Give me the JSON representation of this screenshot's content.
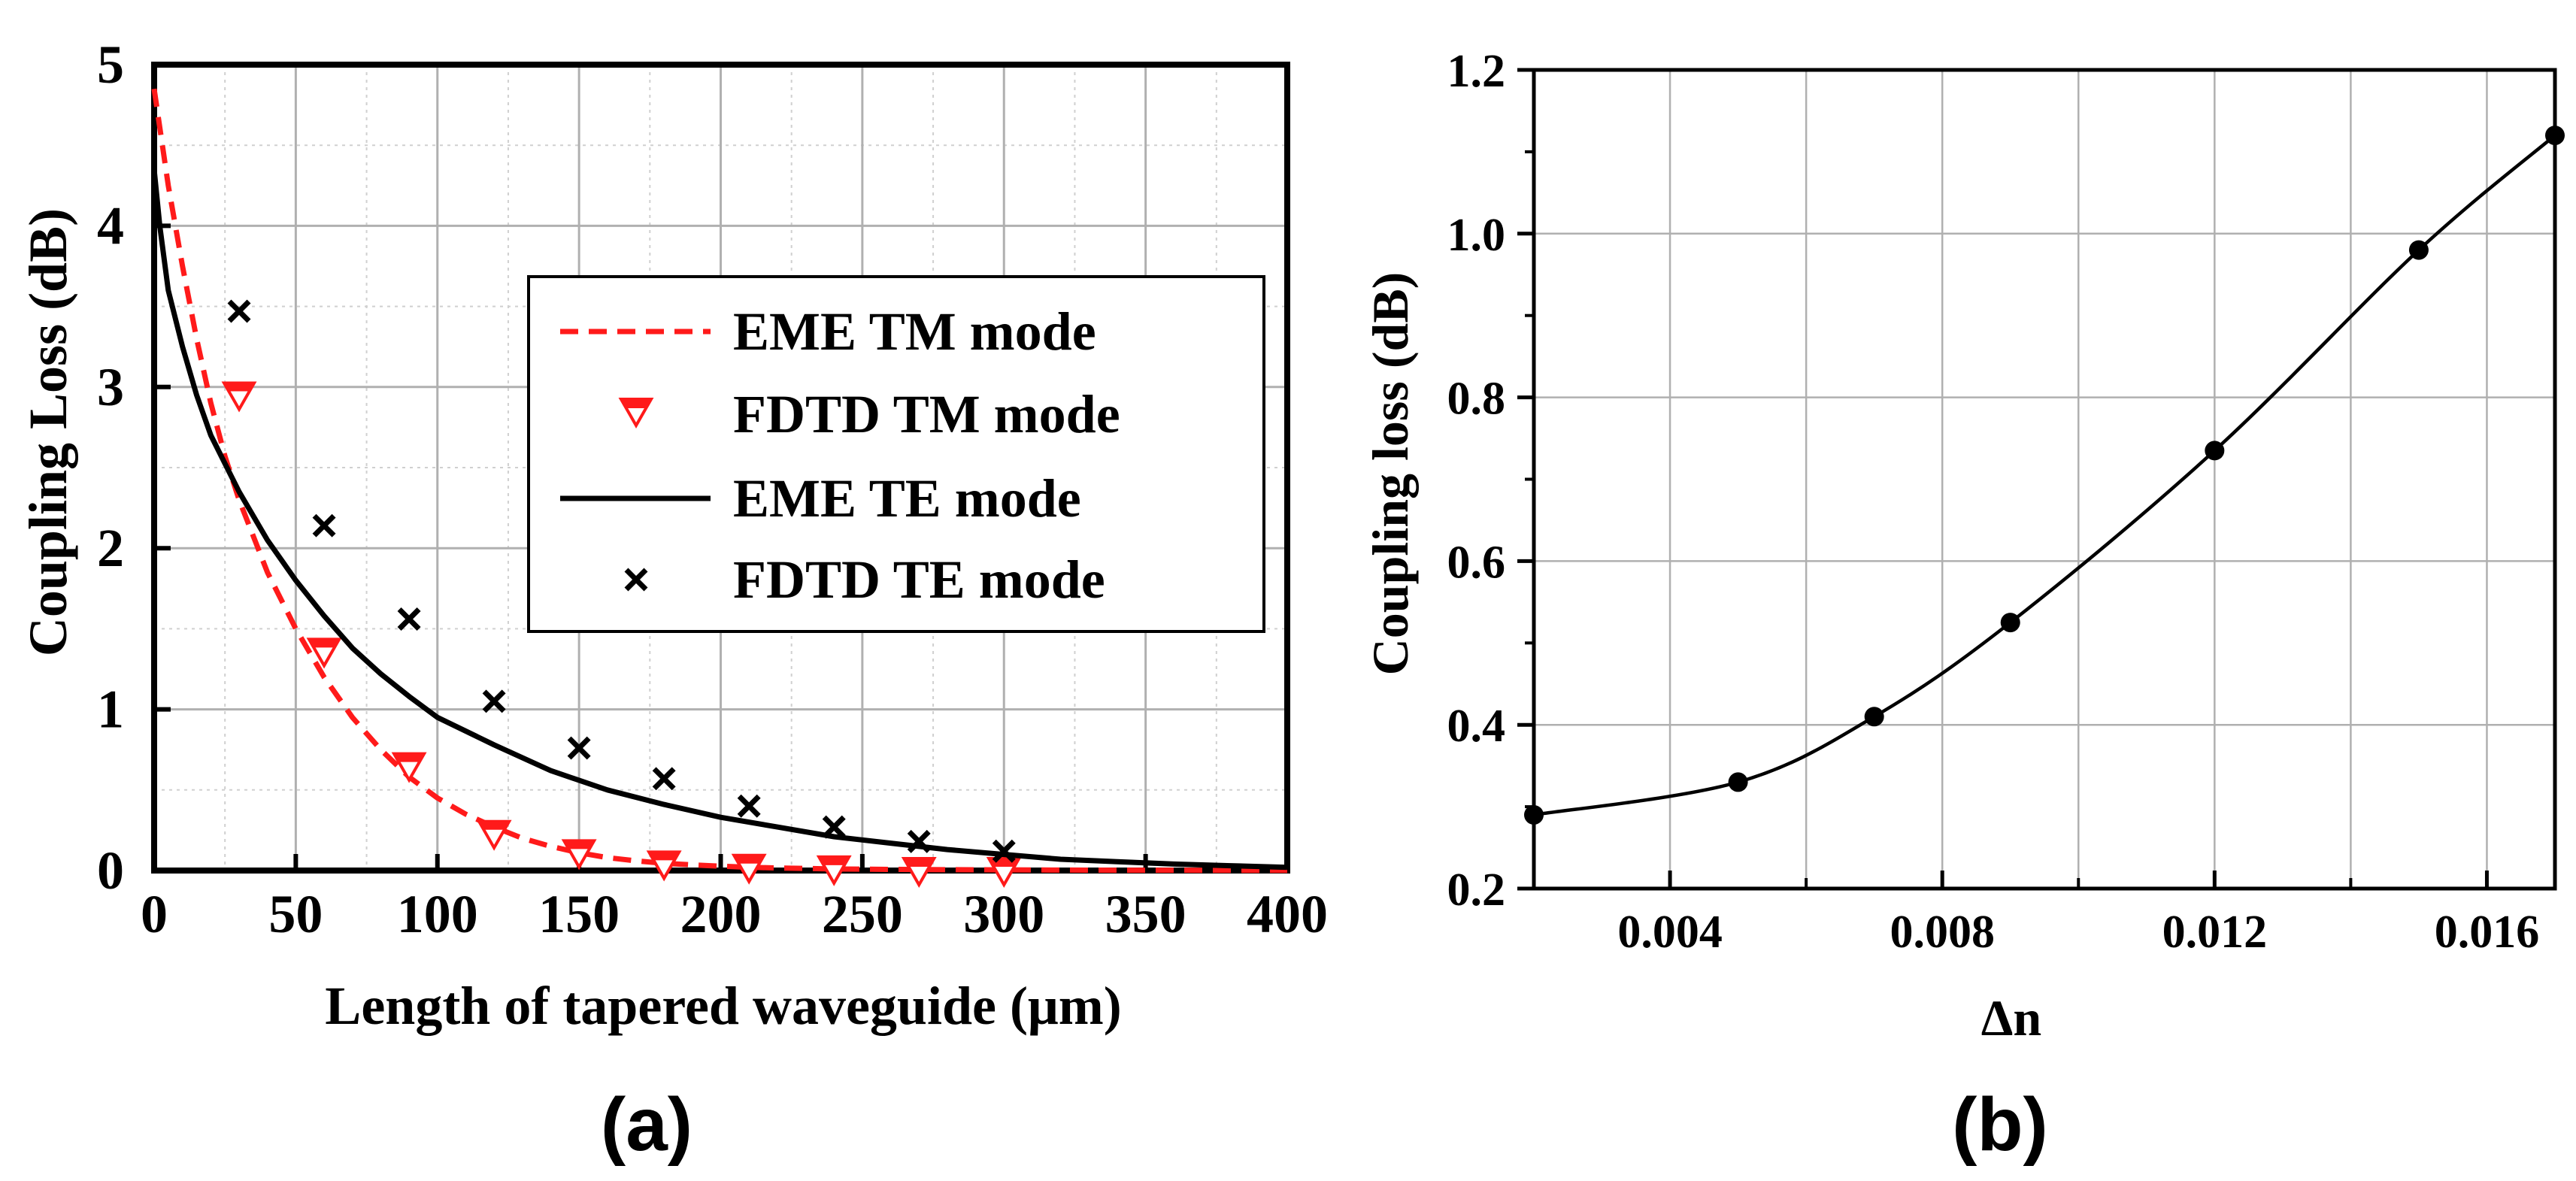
{
  "chart_data": [
    {
      "type": "line",
      "panel_label": "(a)",
      "xlabel": "Length of tapered waveguide (μm)",
      "ylabel": "Coupling Loss (dB)",
      "xlim": [
        0,
        400
      ],
      "ylim": [
        0,
        5
      ],
      "x_ticks": [
        0,
        50,
        100,
        150,
        200,
        250,
        300,
        350,
        400
      ],
      "y_ticks": [
        0,
        1,
        2,
        3,
        4,
        5
      ],
      "grid": true,
      "legend_position": "center-right",
      "series": [
        {
          "name": "EME TM mode",
          "style": "dashed-line",
          "color": "#ff1a1a",
          "x": [
            0,
            5,
            10,
            15,
            20,
            25,
            30,
            40,
            50,
            60,
            70,
            80,
            90,
            100,
            110,
            120,
            130,
            140,
            150,
            160,
            170,
            180,
            190,
            200,
            210,
            220,
            230,
            240,
            260,
            280,
            300,
            320,
            340,
            360,
            380,
            400
          ],
          "y": [
            4.85,
            4.25,
            3.75,
            3.3,
            2.9,
            2.57,
            2.3,
            1.85,
            1.5,
            1.2,
            0.95,
            0.75,
            0.58,
            0.45,
            0.35,
            0.27,
            0.2,
            0.15,
            0.11,
            0.08,
            0.06,
            0.045,
            0.035,
            0.027,
            0.02,
            0.016,
            0.013,
            0.01,
            0.007,
            0.005,
            0.004,
            0.003,
            0.002,
            0.002,
            0.001,
            0.001
          ]
        },
        {
          "name": "FDTD TM mode",
          "style": "marker-triangle-down",
          "color": "#ff1a1a",
          "x": [
            30,
            60,
            90,
            120,
            150,
            180,
            210,
            240,
            270,
            300
          ],
          "y": [
            2.95,
            1.36,
            0.65,
            0.23,
            0.11,
            0.04,
            0.02,
            0.01,
            0.0,
            0.0
          ]
        },
        {
          "name": "EME TE mode",
          "style": "solid-line",
          "color": "#000000",
          "x": [
            0,
            2,
            5,
            10,
            15,
            20,
            30,
            40,
            50,
            60,
            70,
            80,
            90,
            100,
            120,
            140,
            160,
            180,
            200,
            220,
            240,
            260,
            280,
            300,
            320,
            340,
            360,
            380,
            400
          ],
          "y": [
            4.35,
            4.0,
            3.6,
            3.25,
            2.95,
            2.7,
            2.35,
            2.05,
            1.8,
            1.58,
            1.38,
            1.22,
            1.08,
            0.95,
            0.78,
            0.62,
            0.5,
            0.41,
            0.33,
            0.27,
            0.21,
            0.17,
            0.13,
            0.1,
            0.07,
            0.055,
            0.04,
            0.03,
            0.02
          ]
        },
        {
          "name": "FDTD TE mode",
          "style": "marker-x",
          "color": "#000000",
          "x": [
            30,
            60,
            90,
            120,
            150,
            180,
            210,
            240,
            270,
            300
          ],
          "y": [
            3.47,
            2.14,
            1.56,
            1.05,
            0.76,
            0.57,
            0.4,
            0.27,
            0.18,
            0.12
          ]
        }
      ]
    },
    {
      "type": "line",
      "panel_label": "(b)",
      "xlabel": "Δn",
      "ylabel": "Coupling loss (dB)",
      "xlim": [
        0.002,
        0.017
      ],
      "ylim": [
        0.2,
        1.2
      ],
      "x_ticks": [
        0.004,
        0.008,
        0.012,
        0.016
      ],
      "x_tick_labels": [
        "0.004",
        "0.008",
        "0.012",
        "0.016"
      ],
      "y_ticks": [
        0.2,
        0.4,
        0.6,
        0.8,
        1.0,
        1.2
      ],
      "y_tick_labels": [
        "0.2",
        "0.4",
        "0.6",
        "0.8",
        "1.0",
        "1.2"
      ],
      "grid": true,
      "series": [
        {
          "name": "Coupling loss",
          "style": "solid-line-with-circle-markers",
          "color": "#000000",
          "x": [
            0.002,
            0.005,
            0.007,
            0.009,
            0.012,
            0.015,
            0.017
          ],
          "y": [
            0.29,
            0.33,
            0.41,
            0.525,
            0.735,
            0.98,
            1.12
          ]
        }
      ]
    }
  ]
}
